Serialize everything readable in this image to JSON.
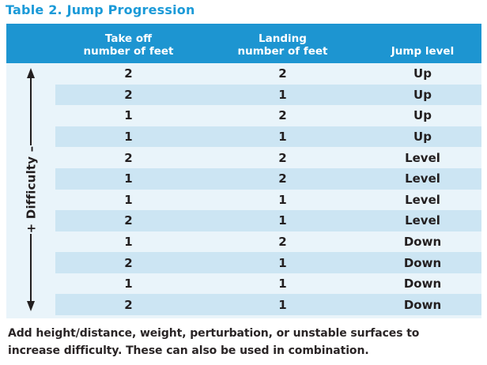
{
  "title": "Table 2. Jump Progression",
  "table": {
    "headers": {
      "takeoff": {
        "line1": "Take off",
        "line2": "number of feet"
      },
      "landing": {
        "line1": "Landing",
        "line2": "number of feet"
      },
      "jump_level": "Jump level"
    },
    "difficulty_axis_label": "+ Difficulty –",
    "rows": [
      {
        "takeoff": "2",
        "landing": "2",
        "jump_level": "Up"
      },
      {
        "takeoff": "2",
        "landing": "1",
        "jump_level": "Up"
      },
      {
        "takeoff": "1",
        "landing": "2",
        "jump_level": "Up"
      },
      {
        "takeoff": "1",
        "landing": "1",
        "jump_level": "Up"
      },
      {
        "takeoff": "2",
        "landing": "2",
        "jump_level": "Level"
      },
      {
        "takeoff": "1",
        "landing": "2",
        "jump_level": "Level"
      },
      {
        "takeoff": "1",
        "landing": "1",
        "jump_level": "Level"
      },
      {
        "takeoff": "2",
        "landing": "1",
        "jump_level": "Level"
      },
      {
        "takeoff": "1",
        "landing": "2",
        "jump_level": "Down"
      },
      {
        "takeoff": "2",
        "landing": "1",
        "jump_level": "Down"
      },
      {
        "takeoff": "1",
        "landing": "1",
        "jump_level": "Down"
      },
      {
        "takeoff": "2",
        "landing": "1",
        "jump_level": "Down"
      }
    ]
  },
  "note": {
    "lines": [
      "Add height/distance, weight, perturbation, or unstable surfaces to",
      "increase difficulty. These can also be used in combination."
    ]
  },
  "colors": {
    "header_bg": "#1D95D1",
    "row_light": "#E9F4FA",
    "row_dark": "#CCE5F3",
    "title_text": "#1B9AD8",
    "body_text": "#231F20"
  }
}
